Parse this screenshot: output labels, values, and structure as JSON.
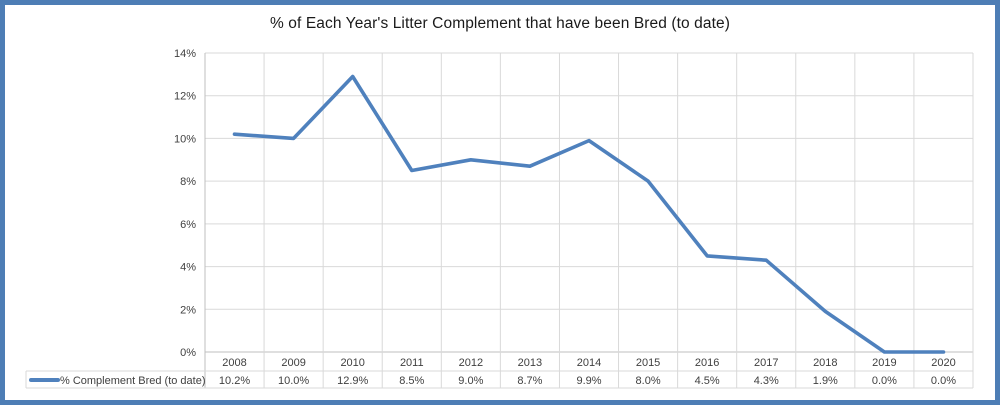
{
  "title": "% of Each Year's Litter Complement that have been Bred (to date)",
  "legend": {
    "label": "% Complement Bred (to date)"
  },
  "chart_data": {
    "type": "line",
    "title": "% of Each Year's Litter Complement that have been Bred (to date)",
    "categories": [
      "2008",
      "2009",
      "2010",
      "2011",
      "2012",
      "2013",
      "2014",
      "2015",
      "2016",
      "2017",
      "2018",
      "2019",
      "2020"
    ],
    "series": [
      {
        "name": "% Complement Bred (to date)",
        "values": [
          10.2,
          10.0,
          12.9,
          8.5,
          9.0,
          8.7,
          9.9,
          8.0,
          4.5,
          4.3,
          1.9,
          0.0,
          0.0
        ]
      }
    ],
    "value_labels": [
      "10.2%",
      "10.0%",
      "12.9%",
      "8.5%",
      "9.0%",
      "8.7%",
      "9.9%",
      "8.0%",
      "4.5%",
      "4.3%",
      "1.9%",
      "0.0%",
      "0.0%"
    ],
    "xlabel": "",
    "ylabel": "",
    "y_axis": {
      "min": 0,
      "max": 14,
      "step": 2,
      "tick_labels": [
        "0%",
        "2%",
        "4%",
        "6%",
        "8%",
        "10%",
        "12%",
        "14%"
      ]
    },
    "grid": true,
    "legend_position": "bottom-left-table"
  },
  "colors": {
    "line": "#4f81bd",
    "gridline": "#d9d9d9",
    "axis": "#bfbfbf",
    "label_text": "#404040",
    "title_text": "#1a1a1a",
    "frame_border": "#4d7db5"
  }
}
